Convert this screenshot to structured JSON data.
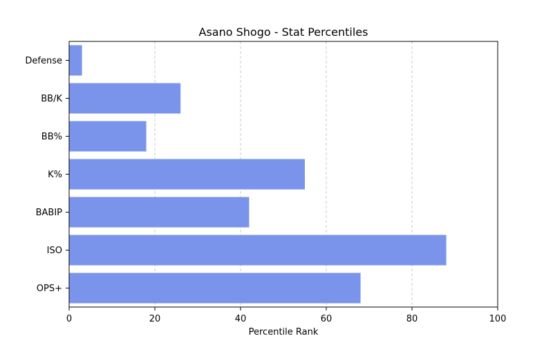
{
  "chart_data": {
    "type": "bar",
    "orientation": "horizontal",
    "title": "Asano Shogo - Stat Percentiles",
    "xlabel": "Percentile Rank",
    "ylabel": "",
    "categories": [
      "OPS+",
      "ISO",
      "BABIP",
      "K%",
      "BB%",
      "BB/K",
      "Defense"
    ],
    "values": [
      68,
      88,
      42,
      55,
      18,
      26,
      3
    ],
    "xlim": [
      0,
      100
    ],
    "xticks": [
      "0",
      "20",
      "40",
      "60",
      "80",
      "100"
    ],
    "grid": "x-dashed",
    "bar_color": "#7994EA",
    "grid_color": "#c8c8c8"
  }
}
